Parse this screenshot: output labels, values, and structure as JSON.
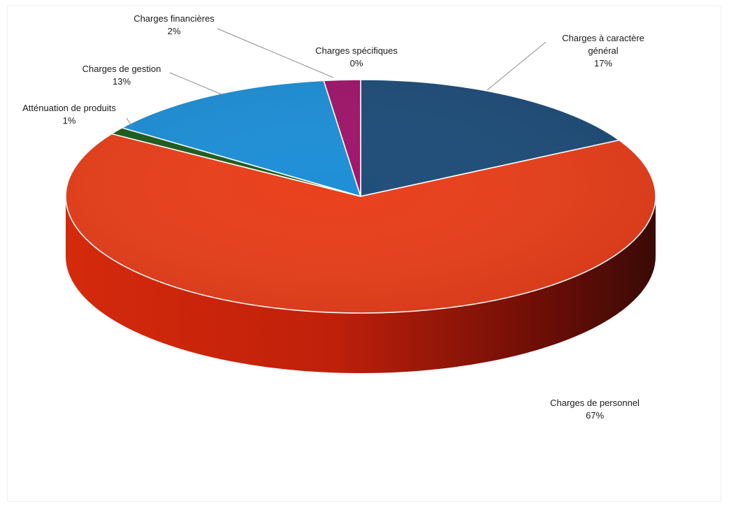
{
  "chart_data": {
    "type": "pie",
    "style": "3d",
    "title": "",
    "series": [
      {
        "values": [
          17,
          67,
          1,
          13,
          2,
          0
        ],
        "categories": [
          "Charges à caractère général",
          "Charges de personnel",
          "Atténuation de produits",
          "Charges de gestion",
          "Charges financières",
          "Charges spécifiques"
        ]
      }
    ],
    "slices": [
      {
        "label_lines": [
          "Charges à caractère",
          "général"
        ],
        "pct_label": "17%",
        "value": 17,
        "color": "#1f4e79"
      },
      {
        "label_lines": [
          "Charges de personnel"
        ],
        "pct_label": "67%",
        "value": 67,
        "color": "#e8401c"
      },
      {
        "label_lines": [
          "Atténuation de produits"
        ],
        "pct_label": "1%",
        "value": 1,
        "color": "#1e5c1e"
      },
      {
        "label_lines": [
          "Charges de gestion"
        ],
        "pct_label": "13%",
        "value": 13,
        "color": "#1f8fd6"
      },
      {
        "label_lines": [
          "Charges financières"
        ],
        "pct_label": "2%",
        "value": 2,
        "color": "#a0176b"
      },
      {
        "label_lines": [
          "Charges spécifiques"
        ],
        "pct_label": "0%",
        "value": 0,
        "color": "#7f7f7f"
      }
    ],
    "legend": "none",
    "data_labels": "outside with leader lines"
  }
}
